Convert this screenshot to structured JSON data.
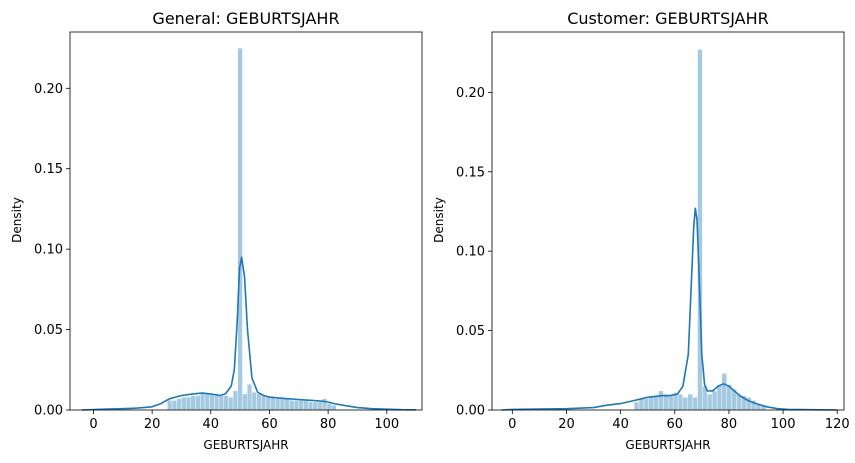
{
  "chart_data": [
    {
      "type": "histogram",
      "title": "General: GEBURTSJAHR",
      "xlabel": "GEBURTSJAHR",
      "ylabel": "Density",
      "xlim": [
        -8,
        112
      ],
      "ylim": [
        0,
        0.235
      ],
      "xticks": [
        "0",
        "20",
        "40",
        "60",
        "80",
        "100"
      ],
      "xtick_values": [
        0,
        20,
        40,
        60,
        80,
        100
      ],
      "yticks": [
        "0.00",
        "0.05",
        "0.10",
        "0.15",
        "0.20"
      ],
      "ytick_values": [
        0,
        0.05,
        0.1,
        0.15,
        0.2
      ],
      "bin_width": 1.6,
      "bars": [
        {
          "x": 25.2,
          "y": 0.006
        },
        {
          "x": 26.8,
          "y": 0.006
        },
        {
          "x": 28.4,
          "y": 0.007
        },
        {
          "x": 30.0,
          "y": 0.008
        },
        {
          "x": 31.6,
          "y": 0.008
        },
        {
          "x": 33.2,
          "y": 0.009
        },
        {
          "x": 34.8,
          "y": 0.009
        },
        {
          "x": 36.4,
          "y": 0.01
        },
        {
          "x": 38.0,
          "y": 0.01
        },
        {
          "x": 39.6,
          "y": 0.01
        },
        {
          "x": 41.2,
          "y": 0.01
        },
        {
          "x": 42.8,
          "y": 0.009
        },
        {
          "x": 44.4,
          "y": 0.009
        },
        {
          "x": 46.0,
          "y": 0.008
        },
        {
          "x": 47.6,
          "y": 0.012
        },
        {
          "x": 49.2,
          "y": 0.225
        },
        {
          "x": 50.8,
          "y": 0.01
        },
        {
          "x": 52.4,
          "y": 0.016
        },
        {
          "x": 54.0,
          "y": 0.011
        },
        {
          "x": 55.6,
          "y": 0.01
        },
        {
          "x": 57.2,
          "y": 0.009
        },
        {
          "x": 58.8,
          "y": 0.008
        },
        {
          "x": 60.4,
          "y": 0.008
        },
        {
          "x": 62.0,
          "y": 0.007
        },
        {
          "x": 63.6,
          "y": 0.007
        },
        {
          "x": 65.2,
          "y": 0.007
        },
        {
          "x": 66.8,
          "y": 0.006
        },
        {
          "x": 68.4,
          "y": 0.006
        },
        {
          "x": 70.0,
          "y": 0.006
        },
        {
          "x": 71.6,
          "y": 0.006
        },
        {
          "x": 73.2,
          "y": 0.005
        },
        {
          "x": 74.8,
          "y": 0.005
        },
        {
          "x": 76.4,
          "y": 0.005
        },
        {
          "x": 78.0,
          "y": 0.007
        },
        {
          "x": 79.6,
          "y": 0.004
        },
        {
          "x": 81.2,
          "y": 0.003
        }
      ],
      "kde": {
        "x": [
          -4,
          0,
          5,
          10,
          15,
          20,
          23,
          26,
          30,
          34,
          37,
          40,
          43,
          45,
          47,
          48,
          49,
          49.8,
          50.5,
          51.5,
          52.5,
          54,
          56,
          58,
          60,
          63,
          66,
          70,
          74,
          78,
          80,
          82,
          85,
          90,
          95,
          100,
          105,
          110
        ],
        "y": [
          0,
          0.0003,
          0.0006,
          0.0008,
          0.0012,
          0.002,
          0.004,
          0.007,
          0.009,
          0.01,
          0.0105,
          0.01,
          0.009,
          0.01,
          0.015,
          0.025,
          0.055,
          0.088,
          0.095,
          0.083,
          0.05,
          0.02,
          0.011,
          0.009,
          0.008,
          0.0075,
          0.007,
          0.0065,
          0.006,
          0.0055,
          0.005,
          0.004,
          0.003,
          0.0015,
          0.0008,
          0.0005,
          0.0002,
          0.0001
        ]
      },
      "colors": {
        "bar": "#1f77b4",
        "bar_opacity": 0.4,
        "line": "#1f77b4"
      }
    },
    {
      "type": "histogram",
      "title": "Customer: GEBURTSJAHR",
      "xlabel": "GEBURTSJAHR",
      "ylabel": "Density",
      "xlim": [
        -7.5,
        122.5
      ],
      "ylim": [
        0,
        0.238
      ],
      "xticks": [
        "0",
        "20",
        "40",
        "60",
        "80",
        "100",
        "120"
      ],
      "xtick_values": [
        0,
        20,
        40,
        60,
        80,
        100,
        120
      ],
      "yticks": [
        "0.00",
        "0.05",
        "0.10",
        "0.15",
        "0.20"
      ],
      "ytick_values": [
        0,
        0.05,
        0.1,
        0.15,
        0.2
      ],
      "bin_width": 1.8,
      "bars": [
        {
          "x": 45.0,
          "y": 0.005
        },
        {
          "x": 46.8,
          "y": 0.007
        },
        {
          "x": 48.6,
          "y": 0.007
        },
        {
          "x": 50.4,
          "y": 0.008
        },
        {
          "x": 52.2,
          "y": 0.009
        },
        {
          "x": 54.0,
          "y": 0.012
        },
        {
          "x": 55.8,
          "y": 0.01
        },
        {
          "x": 57.6,
          "y": 0.009
        },
        {
          "x": 59.4,
          "y": 0.011
        },
        {
          "x": 61.2,
          "y": 0.01
        },
        {
          "x": 63.0,
          "y": 0.008
        },
        {
          "x": 64.8,
          "y": 0.01
        },
        {
          "x": 66.6,
          "y": 0.008
        },
        {
          "x": 68.4,
          "y": 0.227
        },
        {
          "x": 70.2,
          "y": 0.015
        },
        {
          "x": 72.0,
          "y": 0.01
        },
        {
          "x": 73.8,
          "y": 0.012
        },
        {
          "x": 75.6,
          "y": 0.016
        },
        {
          "x": 77.4,
          "y": 0.023
        },
        {
          "x": 79.2,
          "y": 0.016
        },
        {
          "x": 81.0,
          "y": 0.013
        },
        {
          "x": 82.8,
          "y": 0.01
        },
        {
          "x": 84.6,
          "y": 0.009
        },
        {
          "x": 86.4,
          "y": 0.008
        },
        {
          "x": 88.2,
          "y": 0.006
        },
        {
          "x": 90.0,
          "y": 0.004
        },
        {
          "x": 91.8,
          "y": 0.003
        }
      ],
      "kde": {
        "x": [
          -4,
          0,
          10,
          20,
          30,
          35,
          40,
          45,
          50,
          55,
          58,
          61,
          63,
          65,
          66,
          67,
          67.6,
          68.2,
          69,
          70,
          71,
          72,
          74,
          76,
          78,
          80,
          82,
          84,
          87,
          90,
          94,
          98,
          102,
          110,
          120
        ],
        "y": [
          0,
          0.0004,
          0.0006,
          0.0008,
          0.0015,
          0.003,
          0.004,
          0.006,
          0.008,
          0.009,
          0.009,
          0.01,
          0.015,
          0.035,
          0.075,
          0.115,
          0.127,
          0.12,
          0.085,
          0.035,
          0.016,
          0.012,
          0.012,
          0.015,
          0.0165,
          0.015,
          0.012,
          0.009,
          0.006,
          0.004,
          0.002,
          0.0008,
          0.0004,
          0.0002,
          0
        ]
      },
      "colors": {
        "bar": "#1f77b4",
        "bar_opacity": 0.4,
        "line": "#1f77b4"
      }
    }
  ]
}
